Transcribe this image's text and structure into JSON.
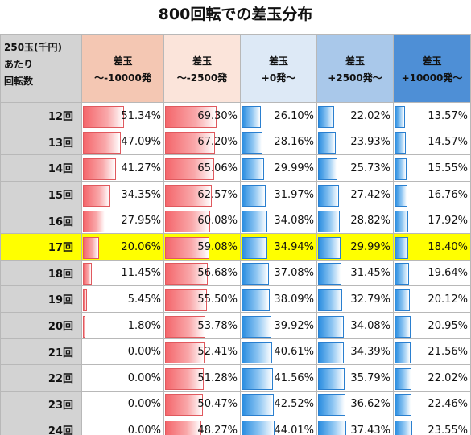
{
  "title": "800回転での差玉分布",
  "header": {
    "corner": [
      "250玉(千円)",
      "あたり",
      "回転数"
    ],
    "columns": [
      {
        "line1": "差玉",
        "line2": "～-10000発",
        "bg": "#f4c7b3",
        "bar": "red"
      },
      {
        "line1": "差玉",
        "line2": "～-2500発",
        "bg": "#fbe4da",
        "bar": "red"
      },
      {
        "line1": "差玉",
        "line2": "+0発～",
        "bg": "#dde9f6",
        "bar": "blue"
      },
      {
        "line1": "差玉",
        "line2": "+2500発～",
        "bg": "#a9c8ea",
        "bar": "blue"
      },
      {
        "line1": "差玉",
        "line2": "+10000発～",
        "bg": "#4e8fd6",
        "bar": "blue"
      }
    ]
  },
  "highlight_color": "#ffff00",
  "chart_data": {
    "type": "table",
    "title": "800回転での差玉分布",
    "row_header": "250玉(千円)あたり回転数",
    "columns": [
      "差玉～-10000発",
      "差玉～-2500発",
      "差玉+0発～",
      "差玉+2500発～",
      "差玉+10000発～"
    ],
    "highlight_row": "17回",
    "rows": [
      {
        "label": "12回",
        "values": [
          "51.34%",
          "69.30%",
          "26.10%",
          "22.02%",
          "13.57%"
        ],
        "num": [
          51.34,
          69.3,
          26.1,
          22.02,
          13.57
        ]
      },
      {
        "label": "13回",
        "values": [
          "47.09%",
          "67.20%",
          "28.16%",
          "23.93%",
          "14.57%"
        ],
        "num": [
          47.09,
          67.2,
          28.16,
          23.93,
          14.57
        ]
      },
      {
        "label": "14回",
        "values": [
          "41.27%",
          "65.06%",
          "29.99%",
          "25.73%",
          "15.55%"
        ],
        "num": [
          41.27,
          65.06,
          29.99,
          25.73,
          15.55
        ]
      },
      {
        "label": "15回",
        "values": [
          "34.35%",
          "62.57%",
          "31.97%",
          "27.42%",
          "16.76%"
        ],
        "num": [
          34.35,
          62.57,
          31.97,
          27.42,
          16.76
        ]
      },
      {
        "label": "16回",
        "values": [
          "27.95%",
          "60.08%",
          "34.08%",
          "28.82%",
          "17.92%"
        ],
        "num": [
          27.95,
          60.08,
          34.08,
          28.82,
          17.92
        ]
      },
      {
        "label": "17回",
        "values": [
          "20.06%",
          "59.08%",
          "34.94%",
          "29.99%",
          "18.40%"
        ],
        "num": [
          20.06,
          59.08,
          34.94,
          29.99,
          18.4
        ]
      },
      {
        "label": "18回",
        "values": [
          "11.45%",
          "56.68%",
          "37.08%",
          "31.45%",
          "19.64%"
        ],
        "num": [
          11.45,
          56.68,
          37.08,
          31.45,
          19.64
        ]
      },
      {
        "label": "19回",
        "values": [
          "5.45%",
          "55.50%",
          "38.09%",
          "32.79%",
          "20.12%"
        ],
        "num": [
          5.45,
          55.5,
          38.09,
          32.79,
          20.12
        ]
      },
      {
        "label": "20回",
        "values": [
          "1.80%",
          "53.78%",
          "39.92%",
          "34.08%",
          "20.95%"
        ],
        "num": [
          1.8,
          53.78,
          39.92,
          34.08,
          20.95
        ]
      },
      {
        "label": "21回",
        "values": [
          "0.00%",
          "52.41%",
          "40.61%",
          "34.39%",
          "21.56%"
        ],
        "num": [
          0.0,
          52.41,
          40.61,
          34.39,
          21.56
        ]
      },
      {
        "label": "22回",
        "values": [
          "0.00%",
          "51.28%",
          "41.56%",
          "35.79%",
          "22.02%"
        ],
        "num": [
          0.0,
          51.28,
          41.56,
          35.79,
          22.02
        ]
      },
      {
        "label": "23回",
        "values": [
          "0.00%",
          "50.47%",
          "42.52%",
          "36.62%",
          "22.46%"
        ],
        "num": [
          0.0,
          50.47,
          42.52,
          36.62,
          22.46
        ]
      },
      {
        "label": "24回",
        "values": [
          "0.00%",
          "48.27%",
          "44.01%",
          "37.43%",
          "23.55%"
        ],
        "num": [
          0.0,
          48.27,
          44.01,
          37.43,
          23.55
        ]
      }
    ]
  }
}
